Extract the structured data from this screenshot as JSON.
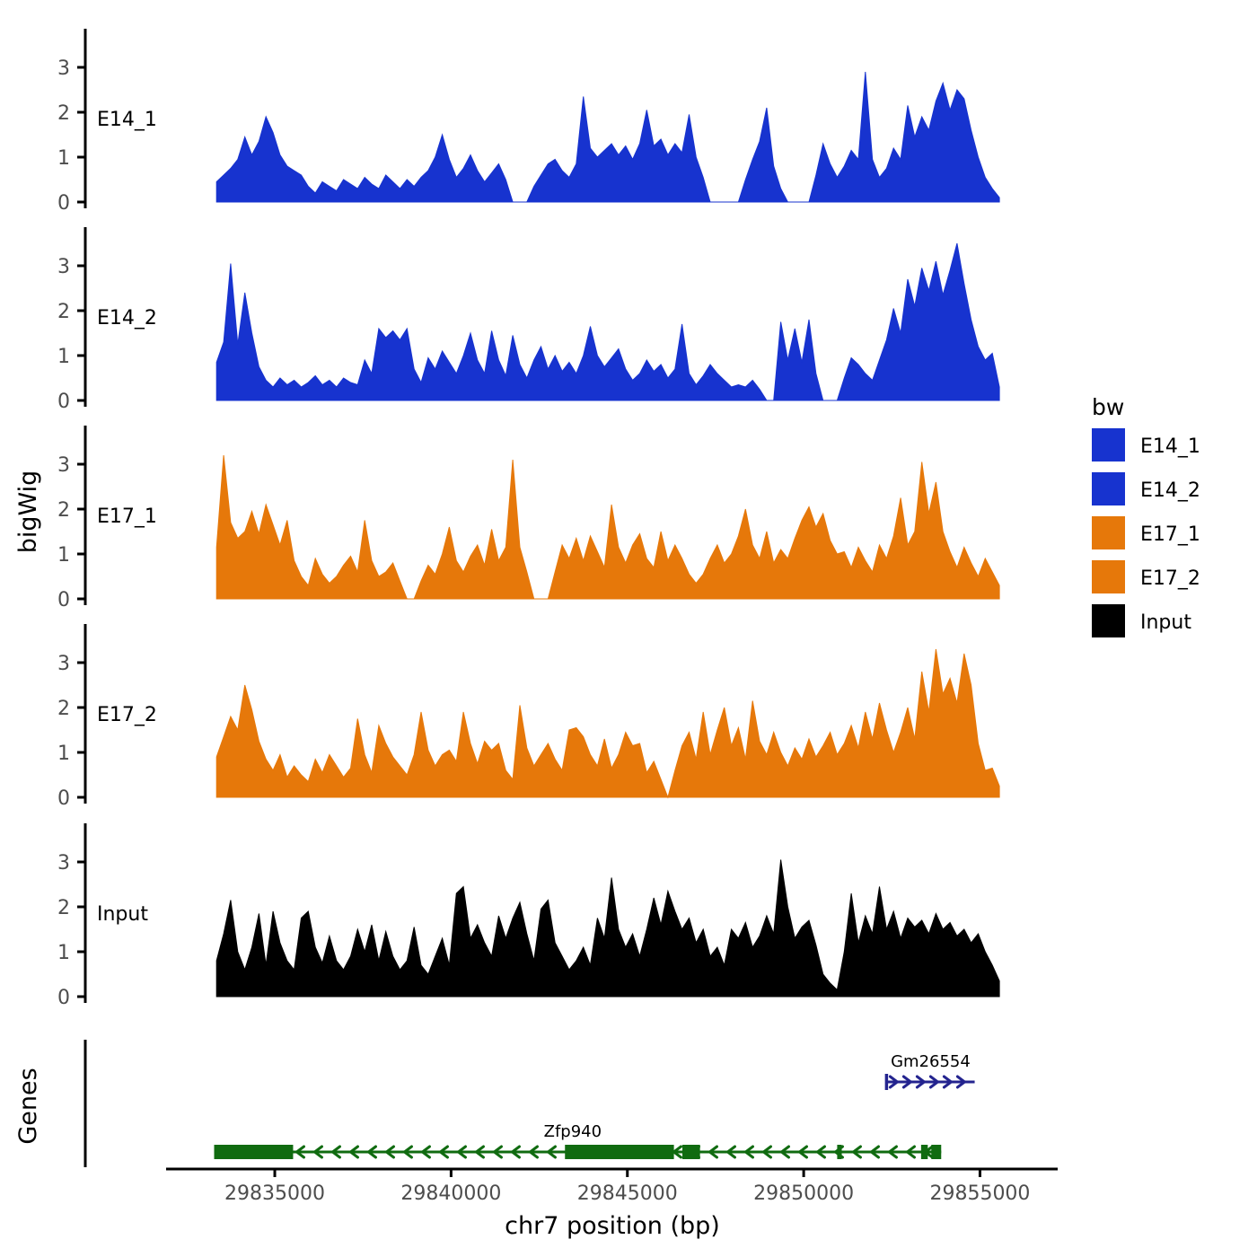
{
  "figure": {
    "background": "#ffffff"
  },
  "chart_data": {
    "type": "area",
    "title": "",
    "xlabel": "chr7 position (bp)",
    "ylabel": "bigWig",
    "genes_label": "Genes",
    "x_axis": {
      "min": 29832300,
      "max": 29857000,
      "ticks": [
        29835000,
        29840000,
        29845000,
        29850000,
        29855000
      ],
      "tick_labels": [
        "29835000",
        "29840000",
        "29845000",
        "29850000",
        "29855000"
      ]
    },
    "y_axis": {
      "ticks": [
        0,
        1,
        2,
        3
      ],
      "tick_labels": [
        "0",
        "1",
        "2",
        "3"
      ],
      "ylim": [
        0,
        3.9
      ],
      "grid": false
    },
    "sampling": {
      "start_bp": 29833350,
      "step_bp": 200
    },
    "colors": {
      "axis": "#000000",
      "tick_text": "#4d4d4d",
      "track_label": "#000000"
    },
    "tracks": [
      {
        "name": "E14_1",
        "color": "#1733cf",
        "values": [
          0.45,
          0.6,
          0.75,
          0.95,
          1.45,
          1.05,
          1.35,
          1.9,
          1.55,
          1.05,
          0.8,
          0.7,
          0.6,
          0.35,
          0.2,
          0.45,
          0.35,
          0.25,
          0.5,
          0.4,
          0.3,
          0.55,
          0.4,
          0.3,
          0.6,
          0.45,
          0.3,
          0.5,
          0.35,
          0.55,
          0.7,
          1.0,
          1.5,
          0.95,
          0.55,
          0.75,
          1.05,
          0.7,
          0.45,
          0.65,
          0.85,
          0.5,
          0,
          0,
          0,
          0.35,
          0.6,
          0.85,
          0.95,
          0.7,
          0.55,
          0.85,
          2.35,
          1.2,
          1.0,
          1.15,
          1.3,
          1.05,
          1.25,
          0.95,
          1.3,
          2.05,
          1.25,
          1.4,
          1.05,
          1.3,
          1.1,
          1.95,
          1.0,
          0.55,
          0,
          0,
          0,
          0,
          0,
          0.5,
          0.95,
          1.35,
          2.1,
          0.8,
          0.3,
          0,
          0,
          0,
          0,
          0.6,
          1.3,
          0.85,
          0.55,
          0.8,
          1.15,
          0.95,
          2.9,
          0.95,
          0.55,
          0.75,
          1.2,
          0.95,
          2.15,
          1.45,
          1.9,
          1.6,
          2.25,
          2.65,
          2.05,
          2.5,
          2.3,
          1.6,
          1.0,
          0.55,
          0.3,
          0.1
        ]
      },
      {
        "name": "E14_2",
        "color": "#1733cf",
        "values": [
          0.85,
          1.3,
          3.05,
          1.25,
          2.4,
          1.5,
          0.75,
          0.45,
          0.3,
          0.5,
          0.35,
          0.45,
          0.3,
          0.4,
          0.55,
          0.35,
          0.45,
          0.3,
          0.5,
          0.4,
          0.35,
          0.9,
          0.6,
          1.6,
          1.4,
          1.55,
          1.35,
          1.6,
          0.7,
          0.4,
          0.95,
          0.7,
          1.1,
          0.85,
          0.6,
          1.0,
          1.5,
          0.9,
          0.6,
          1.55,
          0.9,
          0.55,
          1.45,
          0.8,
          0.5,
          0.9,
          1.2,
          0.7,
          1.0,
          0.65,
          0.85,
          0.6,
          1.0,
          1.65,
          1.0,
          0.75,
          0.95,
          1.15,
          0.7,
          0.45,
          0.6,
          0.9,
          0.65,
          0.8,
          0.5,
          0.7,
          1.7,
          0.6,
          0.35,
          0.55,
          0.8,
          0.6,
          0.45,
          0.3,
          0.35,
          0.3,
          0.45,
          0.25,
          0,
          0,
          1.75,
          0.9,
          1.6,
          0.85,
          1.8,
          0.6,
          0,
          0,
          0,
          0.5,
          0.95,
          0.8,
          0.6,
          0.45,
          0.9,
          1.35,
          2.05,
          1.5,
          2.7,
          2.1,
          2.95,
          2.45,
          3.1,
          2.35,
          2.9,
          3.5,
          2.6,
          1.8,
          1.2,
          0.9,
          1.05,
          0.3
        ]
      },
      {
        "name": "E17_1",
        "color": "#e6780a",
        "values": [
          1.15,
          3.2,
          1.7,
          1.35,
          1.5,
          1.95,
          1.45,
          2.1,
          1.65,
          1.2,
          1.75,
          0.85,
          0.5,
          0.3,
          0.9,
          0.55,
          0.35,
          0.5,
          0.75,
          0.95,
          0.6,
          1.75,
          0.85,
          0.5,
          0.6,
          0.8,
          0.4,
          0,
          0,
          0.4,
          0.75,
          0.55,
          1.0,
          1.6,
          0.85,
          0.6,
          0.95,
          1.2,
          0.75,
          1.55,
          0.85,
          1.15,
          3.1,
          1.15,
          0.6,
          0,
          0,
          0,
          0.6,
          1.2,
          0.9,
          1.35,
          0.85,
          1.4,
          1.05,
          0.7,
          2.1,
          1.15,
          0.8,
          1.2,
          1.45,
          0.9,
          0.7,
          1.5,
          0.85,
          1.2,
          0.9,
          0.55,
          0.35,
          0.55,
          0.9,
          1.2,
          0.8,
          1.0,
          1.4,
          2.0,
          1.2,
          0.9,
          1.5,
          0.8,
          1.1,
          0.9,
          1.35,
          1.75,
          2.05,
          1.6,
          1.9,
          1.3,
          1.0,
          1.05,
          0.7,
          1.15,
          0.85,
          0.6,
          1.2,
          0.9,
          1.4,
          2.25,
          1.2,
          1.5,
          3.05,
          1.9,
          2.6,
          1.5,
          1.05,
          0.7,
          1.15,
          0.8,
          0.5,
          0.9,
          0.6,
          0.3
        ]
      },
      {
        "name": "E17_2",
        "color": "#e6780a",
        "values": [
          0.9,
          1.35,
          1.8,
          1.5,
          2.5,
          1.95,
          1.25,
          0.85,
          0.6,
          0.95,
          0.45,
          0.7,
          0.5,
          0.35,
          0.85,
          0.55,
          0.95,
          0.7,
          0.45,
          0.65,
          1.75,
          0.95,
          0.55,
          1.6,
          1.2,
          0.9,
          0.7,
          0.5,
          0.95,
          1.9,
          1.05,
          0.7,
          0.95,
          1.05,
          0.8,
          1.9,
          1.2,
          0.75,
          1.25,
          1.05,
          1.2,
          0.6,
          0.4,
          2.05,
          1.1,
          0.7,
          0.95,
          1.2,
          0.85,
          0.6,
          1.5,
          1.55,
          1.35,
          0.95,
          0.7,
          1.3,
          0.65,
          0.95,
          1.45,
          1.15,
          1.2,
          0.55,
          0.8,
          0.4,
          0,
          0.6,
          1.15,
          1.45,
          0.85,
          1.9,
          0.95,
          1.5,
          2.0,
          1.15,
          1.55,
          0.85,
          2.15,
          1.25,
          0.95,
          1.45,
          1.0,
          0.7,
          1.1,
          0.85,
          1.3,
          0.9,
          1.15,
          1.45,
          0.95,
          1.2,
          1.6,
          1.1,
          1.9,
          1.3,
          2.1,
          1.5,
          1.0,
          1.45,
          2.0,
          1.3,
          2.8,
          1.9,
          3.3,
          2.3,
          2.65,
          2.1,
          3.2,
          2.5,
          1.2,
          0.6,
          0.65,
          0.25
        ]
      },
      {
        "name": "Input",
        "color": "#000000",
        "values": [
          0.8,
          1.4,
          2.15,
          1.0,
          0.6,
          1.1,
          1.85,
          0.7,
          1.9,
          1.2,
          0.8,
          0.6,
          1.75,
          1.9,
          1.1,
          0.75,
          1.35,
          0.8,
          0.6,
          0.9,
          1.5,
          1.0,
          1.6,
          0.8,
          1.45,
          0.9,
          0.6,
          0.8,
          1.55,
          0.7,
          0.5,
          0.9,
          1.3,
          0.7,
          2.3,
          2.45,
          1.3,
          1.6,
          1.2,
          0.9,
          1.8,
          1.3,
          1.75,
          2.1,
          1.4,
          0.8,
          1.95,
          2.15,
          1.2,
          0.9,
          0.6,
          0.8,
          1.1,
          0.7,
          1.75,
          1.3,
          2.65,
          1.5,
          1.1,
          1.4,
          0.9,
          1.5,
          2.2,
          1.6,
          2.35,
          1.9,
          1.5,
          1.75,
          1.2,
          1.5,
          0.9,
          1.1,
          0.7,
          1.5,
          1.3,
          1.65,
          1.1,
          1.35,
          1.8,
          1.4,
          3.05,
          2.0,
          1.3,
          1.55,
          1.7,
          1.15,
          0.5,
          0.3,
          0.15,
          1.0,
          2.3,
          1.2,
          1.8,
          1.4,
          2.45,
          1.5,
          1.9,
          1.3,
          1.75,
          1.55,
          1.7,
          1.4,
          1.85,
          1.5,
          1.65,
          1.35,
          1.5,
          1.2,
          1.4,
          1.0,
          0.7,
          0.35
        ]
      }
    ],
    "legend": {
      "title": "bw",
      "entries": [
        {
          "label": "E14_1",
          "color": "#1733cf"
        },
        {
          "label": "E14_2",
          "color": "#1733cf"
        },
        {
          "label": "E17_1",
          "color": "#e6780a"
        },
        {
          "label": "E17_2",
          "color": "#e6780a"
        },
        {
          "label": "Input",
          "color": "#000000"
        }
      ]
    },
    "genes": [
      {
        "name": "Gm26554",
        "strand": "+",
        "color": "#24248f",
        "row": 0,
        "start": 29852350,
        "end": 29854850,
        "exons": [],
        "start_bar": true
      },
      {
        "name": "Zfp940",
        "strand": "-",
        "color": "#106b10",
        "row": 1,
        "start": 29833280,
        "end": 29853900,
        "start_bar": false,
        "exons": [
          [
            29833280,
            29835520
          ],
          [
            29843230,
            29846320
          ],
          [
            29846560,
            29847060
          ],
          [
            29850950,
            29851080
          ],
          [
            29853330,
            29853520
          ],
          [
            29853620,
            29853900
          ]
        ]
      }
    ]
  }
}
